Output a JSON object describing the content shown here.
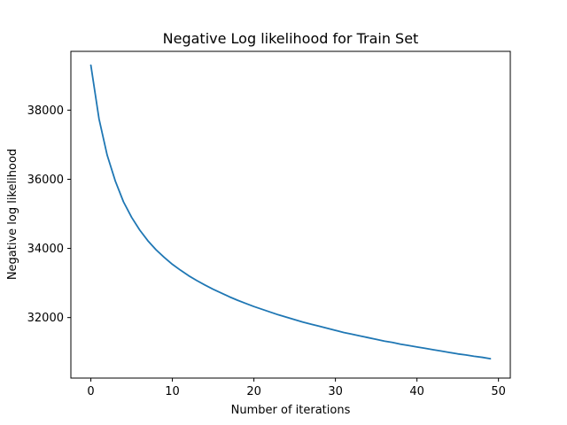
{
  "chart_data": {
    "type": "line",
    "title": "Negative Log likelihood for Train Set",
    "xlabel": "Number of iterations",
    "ylabel": "Negative log likelihood",
    "xlim": [
      -2.45,
      51.45
    ],
    "ylim": [
      30250,
      39700
    ],
    "x_ticks": [
      0,
      10,
      20,
      30,
      40,
      50
    ],
    "y_ticks": [
      32000,
      34000,
      36000,
      38000
    ],
    "x_tick_labels": [
      "0",
      "10",
      "20",
      "30",
      "40",
      "50"
    ],
    "y_tick_labels": [
      "32000",
      "34000",
      "36000",
      "38000"
    ],
    "grid": false,
    "legend": "none",
    "series": [
      {
        "color": "#1f77b4",
        "x": [
          0,
          1,
          2,
          3,
          4,
          5,
          6,
          7,
          8,
          9,
          10,
          11,
          12,
          13,
          14,
          15,
          16,
          17,
          18,
          19,
          20,
          21,
          22,
          23,
          24,
          25,
          26,
          27,
          28,
          29,
          30,
          31,
          32,
          33,
          34,
          35,
          36,
          37,
          38,
          39,
          40,
          41,
          42,
          43,
          44,
          45,
          46,
          47,
          48,
          49
        ],
        "y": [
          39300,
          37750,
          36700,
          35950,
          35350,
          34900,
          34530,
          34220,
          33960,
          33740,
          33540,
          33370,
          33210,
          33070,
          32940,
          32820,
          32710,
          32600,
          32500,
          32410,
          32320,
          32240,
          32160,
          32080,
          32010,
          31940,
          31870,
          31810,
          31750,
          31690,
          31630,
          31570,
          31520,
          31470,
          31420,
          31370,
          31320,
          31280,
          31230,
          31190,
          31150,
          31110,
          31070,
          31030,
          30990,
          30950,
          30920,
          30880,
          30850,
          30810
        ]
      }
    ]
  }
}
